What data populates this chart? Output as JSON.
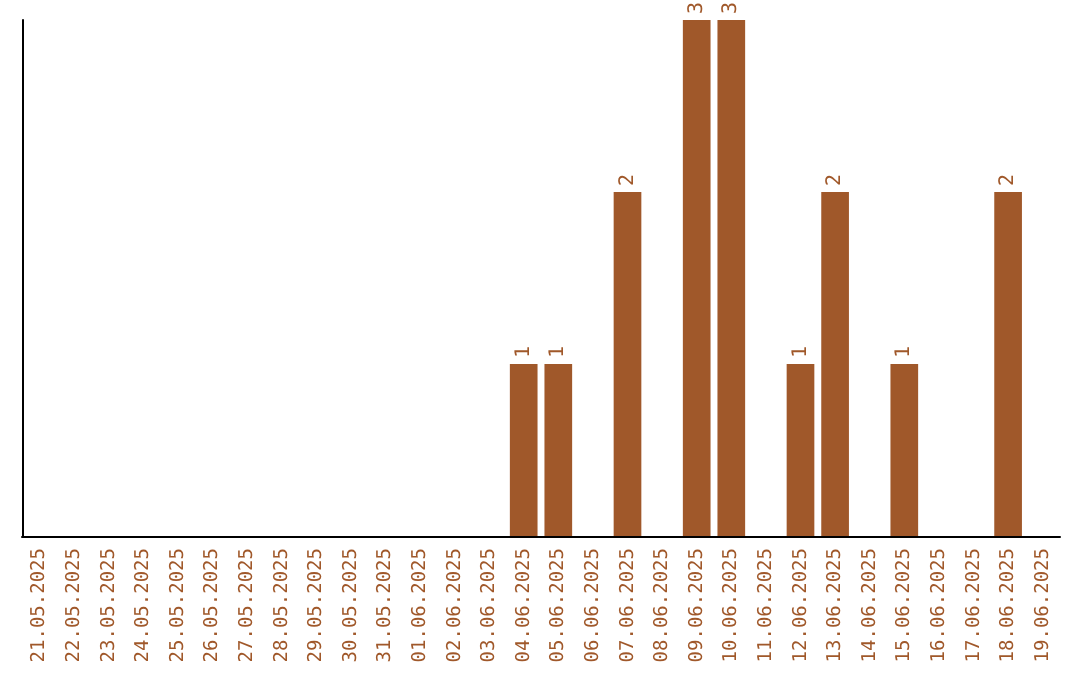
{
  "chart_data": {
    "type": "bar",
    "categories": [
      "21.05.2025",
      "22.05.2025",
      "23.05.2025",
      "24.05.2025",
      "25.05.2025",
      "26.05.2025",
      "27.05.2025",
      "28.05.2025",
      "29.05.2025",
      "30.05.2025",
      "31.05.2025",
      "01.06.2025",
      "02.06.2025",
      "03.06.2025",
      "04.06.2025",
      "05.06.2025",
      "06.06.2025",
      "07.06.2025",
      "08.06.2025",
      "09.06.2025",
      "10.06.2025",
      "11.06.2025",
      "12.06.2025",
      "13.06.2025",
      "14.06.2025",
      "15.06.2025",
      "16.06.2025",
      "17.06.2025",
      "18.06.2025",
      "19.06.2025"
    ],
    "values": [
      null,
      null,
      null,
      null,
      null,
      null,
      null,
      null,
      null,
      null,
      null,
      null,
      null,
      null,
      1,
      1,
      null,
      2,
      null,
      3,
      3,
      null,
      1,
      2,
      null,
      1,
      null,
      null,
      2,
      null
    ],
    "data_labels": true,
    "color": "#a0582a",
    "tick_labels": "x"
  }
}
